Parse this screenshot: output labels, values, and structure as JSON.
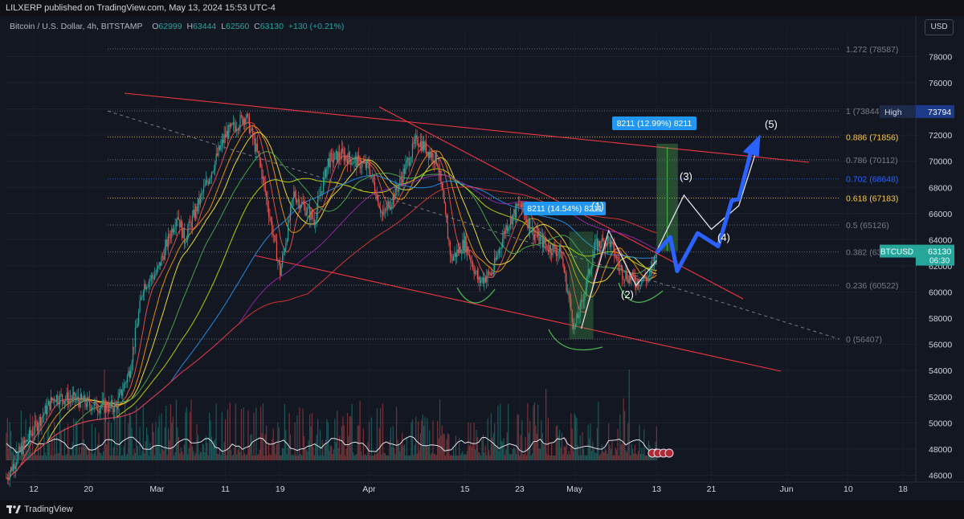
{
  "header": {
    "published_text": "LILXERP published on TradingView.com, May 13, 2024 15:53 UTC-4"
  },
  "legend": {
    "symbol": "Bitcoin / U.S. Dollar, 4h, BITSTAMP",
    "o_label": "O",
    "o_value": "62999",
    "h_label": "H",
    "h_value": "63444",
    "l_label": "L",
    "l_value": "62560",
    "c_label": "C",
    "c_value": "63130",
    "change": "+130 (+0.21%)"
  },
  "currency_button": "USD",
  "footer": {
    "logo_text": "TradingView"
  },
  "colors": {
    "background": "#131722",
    "up": "#26a69a",
    "down": "#ef5350",
    "channel": "#f23645",
    "projection": "#2962ff",
    "measure": "#2196f3"
  },
  "chart_data": {
    "type": "candlestick",
    "symbol": "BTCUSD",
    "timeframe": "4h",
    "y_range": [
      45600,
      79500
    ],
    "price_ticks": [
      46000,
      48000,
      50000,
      52000,
      54000,
      56000,
      58000,
      60000,
      62000,
      64000,
      66000,
      68000,
      70000,
      72000,
      74000,
      76000,
      78000
    ],
    "date_ticks": [
      "12",
      "20",
      "Mar",
      "11",
      "19",
      "Apr",
      "15",
      "23",
      "May",
      "13",
      "21",
      "Jun",
      "10",
      "18"
    ],
    "high_marker": {
      "label": "High",
      "value": 73794
    },
    "last_price": {
      "label": "BTCUSD",
      "value": 63130,
      "countdown": "06:30"
    },
    "fib_levels": [
      {
        "label": "1.272 (78587)",
        "value": 78587,
        "color": "#787b86"
      },
      {
        "label": "1 (73844)",
        "value": 73844,
        "color": "#787b86"
      },
      {
        "label": "0.886 (71856)",
        "value": 71856,
        "color": "#f7c948"
      },
      {
        "label": "0.786 (70112)",
        "value": 70112,
        "color": "#787b86"
      },
      {
        "label": "0.702 (68648)",
        "value": 68648,
        "color": "#2962ff"
      },
      {
        "label": "0.618 (67183)",
        "value": 67183,
        "color": "#f7c948"
      },
      {
        "label": "0.5 (65126)",
        "value": 65126,
        "color": "#787b86"
      },
      {
        "label": "0.382 (6306",
        "value": 63067,
        "color": "#787b86"
      },
      {
        "label": "0.236 (60522)",
        "value": 60522,
        "color": "#787b86"
      },
      {
        "label": "0 (56407)",
        "value": 56407,
        "color": "#787b86"
      }
    ],
    "measure_boxes": [
      {
        "label": "8211 (14.54%) 8211",
        "from": 56407,
        "to": 64618
      },
      {
        "label": "8211 (12.99%) 8211",
        "from": 63130,
        "to": 71341
      }
    ],
    "wave_labels": [
      "(1)",
      "(2)",
      "(3)",
      "(4)",
      "(5)"
    ],
    "series": [
      {
        "name": "price",
        "points": [
          [
            "Feb 8",
            45800
          ],
          [
            "Feb 10",
            47800
          ],
          [
            "Feb 12",
            49500
          ],
          [
            "Feb 15",
            52000
          ],
          [
            "Feb 18",
            51800
          ],
          [
            "Feb 21",
            51300
          ],
          [
            "Feb 24",
            51200
          ],
          [
            "Feb 26",
            54000
          ],
          [
            "Feb 28",
            60500
          ],
          [
            "Mar 1",
            61500
          ],
          [
            "Mar 4",
            66000
          ],
          [
            "Mar 5",
            64000
          ],
          [
            "Mar 8",
            68000
          ],
          [
            "Mar 11",
            72000
          ],
          [
            "Mar 14",
            73500
          ],
          [
            "Mar 16",
            70000
          ],
          [
            "Mar 19",
            61500
          ],
          [
            "Mar 21",
            67500
          ],
          [
            "Mar 24",
            65500
          ],
          [
            "Mar 26",
            70000
          ],
          [
            "Mar 28",
            70500
          ],
          [
            "Apr 1",
            69500
          ],
          [
            "Apr 3",
            65800
          ],
          [
            "Apr 5",
            67800
          ],
          [
            "Apr 8",
            71700
          ],
          [
            "Apr 11",
            70000
          ],
          [
            "Apr 13",
            62500
          ],
          [
            "Apr 15",
            63800
          ],
          [
            "Apr 17",
            60800
          ],
          [
            "Apr 19",
            61500
          ],
          [
            "Apr 21",
            65000
          ],
          [
            "Apr 23",
            66700
          ],
          [
            "Apr 25",
            64500
          ],
          [
            "Apr 27",
            63500
          ],
          [
            "Apr 29",
            63000
          ],
          [
            "May 1",
            57200
          ],
          [
            "May 2",
            59000
          ],
          [
            "May 4",
            63500
          ],
          [
            "May 6",
            64000
          ],
          [
            "May 8",
            61500
          ],
          [
            "May 10",
            60800
          ],
          [
            "May 12",
            61200
          ],
          [
            "May 13",
            63130
          ]
        ]
      }
    ],
    "projection": {
      "points": [
        [
          "May 13",
          63130
        ],
        [
          "May 17",
          67400
        ],
        [
          "May 21",
          64800
        ],
        [
          "May 25",
          66600
        ],
        [
          "May 28",
          71500
        ]
      ],
      "blue_points": [
        [
          "May 13",
          63000
        ],
        [
          "May 15",
          64200
        ],
        [
          "May 16",
          61600
        ],
        [
          "May 19",
          64500
        ],
        [
          "May 22",
          63500
        ],
        [
          "May 24",
          67000
        ],
        [
          "May 25",
          67100
        ],
        [
          "May 27",
          71200
        ]
      ]
    }
  }
}
